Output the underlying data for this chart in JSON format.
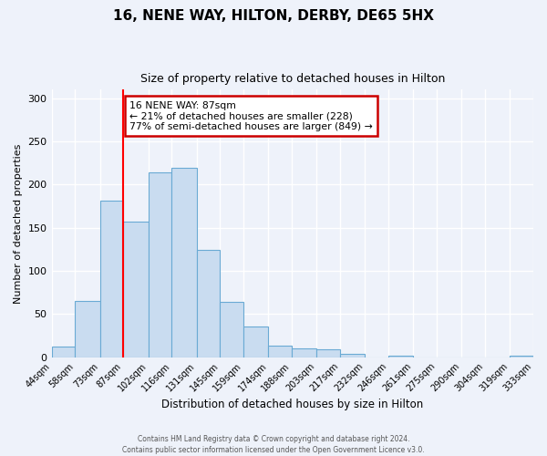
{
  "title": "16, NENE WAY, HILTON, DERBY, DE65 5HX",
  "subtitle": "Size of property relative to detached houses in Hilton",
  "xlabel": "Distribution of detached houses by size in Hilton",
  "ylabel": "Number of detached properties",
  "bin_labels": [
    "44sqm",
    "58sqm",
    "73sqm",
    "87sqm",
    "102sqm",
    "116sqm",
    "131sqm",
    "145sqm",
    "159sqm",
    "174sqm",
    "188sqm",
    "203sqm",
    "217sqm",
    "232sqm",
    "246sqm",
    "261sqm",
    "275sqm",
    "290sqm",
    "304sqm",
    "319sqm",
    "333sqm"
  ],
  "bar_values": [
    12,
    65,
    181,
    157,
    214,
    219,
    124,
    64,
    36,
    13,
    10,
    9,
    4,
    0,
    2,
    0,
    0,
    0,
    0,
    2
  ],
  "bar_color": "#c9dcf0",
  "bar_edge_color": "#6aaad4",
  "annotation_text": "16 NENE WAY: 87sqm\n← 21% of detached houses are smaller (228)\n77% of semi-detached houses are larger (849) →",
  "annotation_box_color": "white",
  "annotation_box_edge_color": "#cc0000",
  "ylim": [
    0,
    310
  ],
  "yticks": [
    0,
    50,
    100,
    150,
    200,
    250,
    300
  ],
  "footer": "Contains HM Land Registry data © Crown copyright and database right 2024.\nContains public sector information licensed under the Open Government Licence v3.0.",
  "background_color": "#eef2fa",
  "grid_color": "#ffffff"
}
